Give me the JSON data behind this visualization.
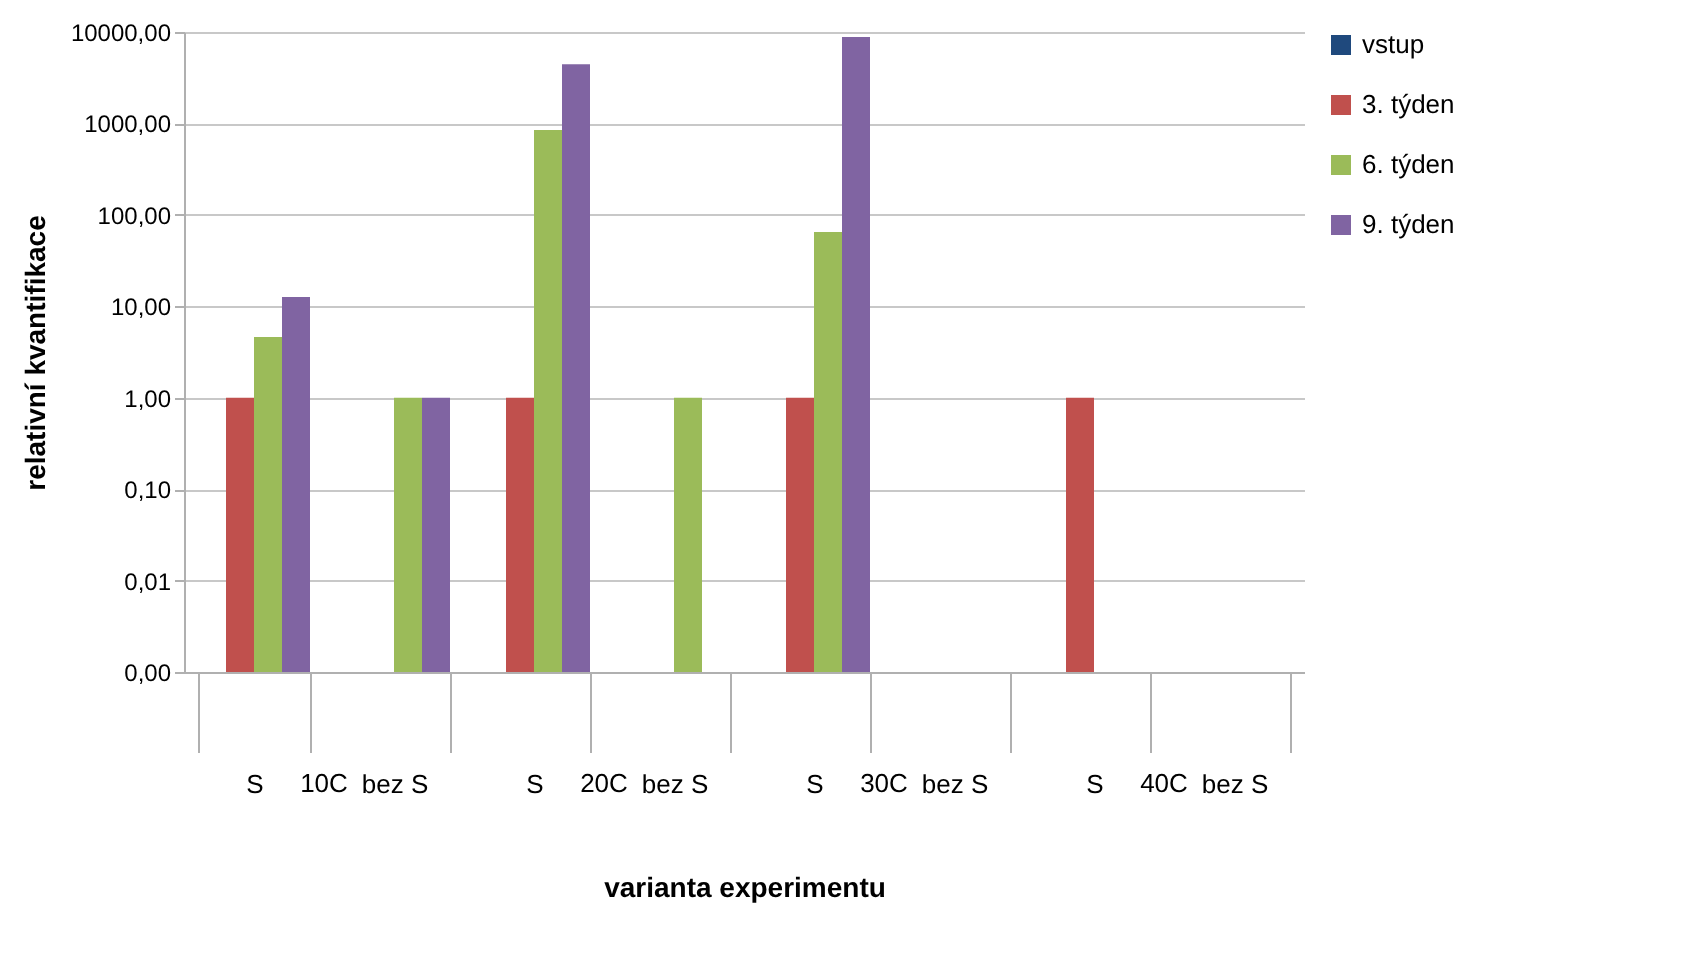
{
  "chart_data": {
    "type": "bar",
    "xlabel": "varianta experimentu",
    "ylabel": "relativní kvantifikace",
    "categories": [
      "S",
      "bez S",
      "S",
      "bez S",
      "S",
      "bez S",
      "S",
      "bez S"
    ],
    "annotations": [
      "10C",
      "20C",
      "30C",
      "40C"
    ],
    "series": [
      {
        "name": "vstup",
        "color": "#1f497d",
        "values": [
          null,
          null,
          null,
          null,
          null,
          null,
          null,
          null
        ]
      },
      {
        "name": "3. týden",
        "color": "#c0504d",
        "values": [
          1,
          null,
          1,
          null,
          1,
          null,
          1,
          null
        ]
      },
      {
        "name": "6. týden",
        "color": "#9bbb59",
        "values": [
          4.6,
          1,
          850,
          1,
          65,
          null,
          null,
          null
        ]
      },
      {
        "name": "9. týden",
        "color": "#8064a2",
        "values": [
          12.6,
          1,
          4450,
          null,
          8800,
          null,
          null,
          null
        ]
      }
    ],
    "log": "y",
    "ylim": [
      0.001,
      10000
    ],
    "yticks": [
      {
        "value": 0.001,
        "label": "0,00"
      },
      {
        "value": 0.01,
        "label": "0,01"
      },
      {
        "value": 0.1,
        "label": "0,10"
      },
      {
        "value": 1,
        "label": "1,00"
      },
      {
        "value": 10,
        "label": "10,00"
      },
      {
        "value": 100,
        "label": "100,00"
      },
      {
        "value": 1000,
        "label": "1000,00"
      },
      {
        "value": 10000,
        "label": "10000,00"
      }
    ],
    "grid": "y",
    "legend": "right"
  }
}
